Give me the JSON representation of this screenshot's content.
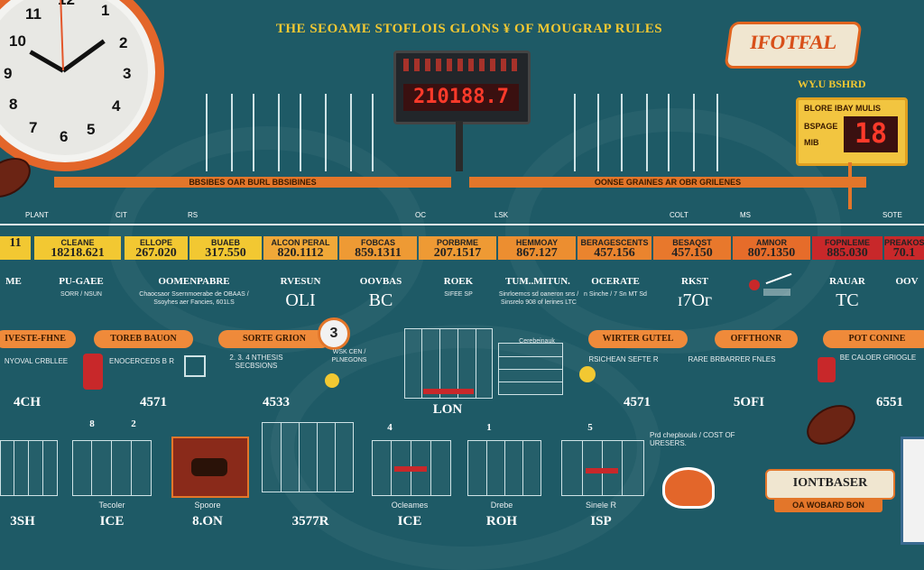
{
  "title": "THE SEOAME STOFLOIS GLONS ¥ OF MOUGRAP RULES",
  "logo_text": "IFOTFAL",
  "scoreboard": {
    "digits": "210188.7"
  },
  "right_header": "WY.U BSHRD",
  "side_panel": {
    "line1": "BLORE IBAY MULIS",
    "line2": "BSPAGE",
    "line3": "MIB",
    "digits": "18"
  },
  "clock_numbers": [
    "12",
    "1",
    "2",
    "3",
    "4",
    "5",
    "6",
    "7",
    "8",
    "9",
    "10",
    "11"
  ],
  "band_left": "BBSIBES OAR BURL BBSIBINES",
  "band_right": "OONSE GRAINES AR OBR GRILENES",
  "connector_labels": [
    "PLANT",
    "CIT",
    "RS",
    "OC",
    "LSK",
    "COLT",
    "MS",
    "SOTE"
  ],
  "categories": [
    {
      "head": "",
      "value": "11"
    },
    {
      "head": "CLEANE",
      "value": "18218.621"
    },
    {
      "head": "ELLOPE",
      "value": "267.020"
    },
    {
      "head": "BUAEB",
      "value": "317.550"
    },
    {
      "head": "ALCON PERAL",
      "value": "820.1112"
    },
    {
      "head": "FOBCAS",
      "value": "859.1311"
    },
    {
      "head": "PORBRME",
      "value": "207.1517"
    },
    {
      "head": "HEMMOAY",
      "value": "867.127"
    },
    {
      "head": "BERAGESCENTS",
      "value": "457.156"
    },
    {
      "head": "BESAQST",
      "value": "457.150"
    },
    {
      "head": "AMNOR",
      "value": "807.1350"
    },
    {
      "head": "FOPNLEME",
      "value": "885.030"
    },
    {
      "head": "PREAKOS",
      "value": "70.1"
    }
  ],
  "row2": [
    {
      "label": "ME",
      "small": "",
      "big": ""
    },
    {
      "label": "PU-GAEE",
      "small": "SORR / NSUN",
      "big": ""
    },
    {
      "label": "OOMENPABRE",
      "small": "Chaocsaor Ssernmoerabe de OBAAS / Ssoyhes aer Fancies, 601LS",
      "big": ""
    },
    {
      "label": "RVESUN",
      "small": "",
      "big": "OLI"
    },
    {
      "label": "OOVBAS",
      "small": "",
      "big": "BC"
    },
    {
      "label": "ROEK",
      "small": "SIFEE SP",
      "big": ""
    },
    {
      "label": "TUM..MITUN.",
      "small": "Sinrloemcs sd oaneron sns / Sinsrelo 908 of lerines LTC",
      "big": ""
    },
    {
      "label": "OCERATE",
      "small": "n Sinche / 7 Sn MT Sd",
      "big": ""
    },
    {
      "label": "RKST",
      "small": "",
      "big": "ɪ7Oᴦ"
    },
    {
      "label": "",
      "small": "",
      "big": ""
    },
    {
      "label": "RAUAR",
      "small": "",
      "big": "TC"
    },
    {
      "label": "OOV",
      "small": "",
      "big": ""
    }
  ],
  "pills": [
    "IVESTE-FHNE",
    "TOREB BAUON",
    "SORTE GRION",
    "WIRTER GUTEL",
    "OFFTHONR",
    "POT CONINE"
  ],
  "section_number": "3",
  "row3_small": [
    "NYOVAL CRBLLEE",
    "ENOCERCEDS B R",
    "2. 3. 4 NTHESIS SECBSIONS",
    "WSK CEN / PLNEGONS",
    "Cerebeinauk",
    "RSICHEAN SEFTE R",
    "RARE BRBARRER FNLES",
    "BE CALOER GRIOGLE"
  ],
  "row3_stats": [
    "4CH",
    "4571",
    "4533",
    "LON",
    "4571",
    "5OFI",
    "6551"
  ],
  "row4_numbers": [
    "8",
    "2",
    "4",
    "1",
    "5"
  ],
  "row4_stats": [
    "3SH",
    "ICE",
    "8.ON",
    "3577R",
    "ICE",
    "ROH",
    "ISP"
  ],
  "row4_labels": [
    "Tecoler",
    "Spoore",
    "Ocleames",
    "Drebe",
    "Sinele R"
  ],
  "notes": "Prd cheplsouls / COST OF URESERS.",
  "badge_text": "IONTBASER",
  "badge_sub": "OA WOBARD BON",
  "colors": {
    "bg": "#1e5a66",
    "orange": "#e3762a",
    "yellow": "#f2c832",
    "red": "#c8282a"
  }
}
